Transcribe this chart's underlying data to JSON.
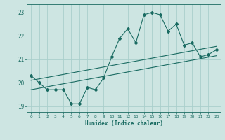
{
  "title": "",
  "xlabel": "Humidex (Indice chaleur)",
  "ylabel": "",
  "background_color": "#cde5e2",
  "grid_color": "#aacfcc",
  "line_color": "#1a6b62",
  "x_data": [
    0,
    1,
    2,
    3,
    4,
    5,
    6,
    7,
    8,
    9,
    10,
    11,
    12,
    13,
    14,
    15,
    16,
    17,
    18,
    19,
    20,
    21,
    22,
    23
  ],
  "y_data": [
    20.3,
    20.0,
    19.7,
    19.7,
    19.7,
    19.1,
    19.1,
    19.8,
    19.7,
    20.2,
    21.1,
    21.9,
    22.3,
    21.7,
    22.9,
    23.0,
    22.9,
    22.2,
    22.5,
    21.6,
    21.7,
    21.1,
    21.2,
    21.4
  ],
  "trend1_x": [
    0,
    23
  ],
  "trend1_y": [
    20.1,
    21.55
  ],
  "trend2_x": [
    0,
    23
  ],
  "trend2_y": [
    19.7,
    21.15
  ],
  "xlim": [
    -0.5,
    23.5
  ],
  "ylim": [
    18.75,
    23.35
  ],
  "yticks": [
    19,
    20,
    21,
    22,
    23
  ],
  "xticks": [
    0,
    1,
    2,
    3,
    4,
    5,
    6,
    7,
    8,
    9,
    10,
    11,
    12,
    13,
    14,
    15,
    16,
    17,
    18,
    19,
    20,
    21,
    22,
    23
  ]
}
